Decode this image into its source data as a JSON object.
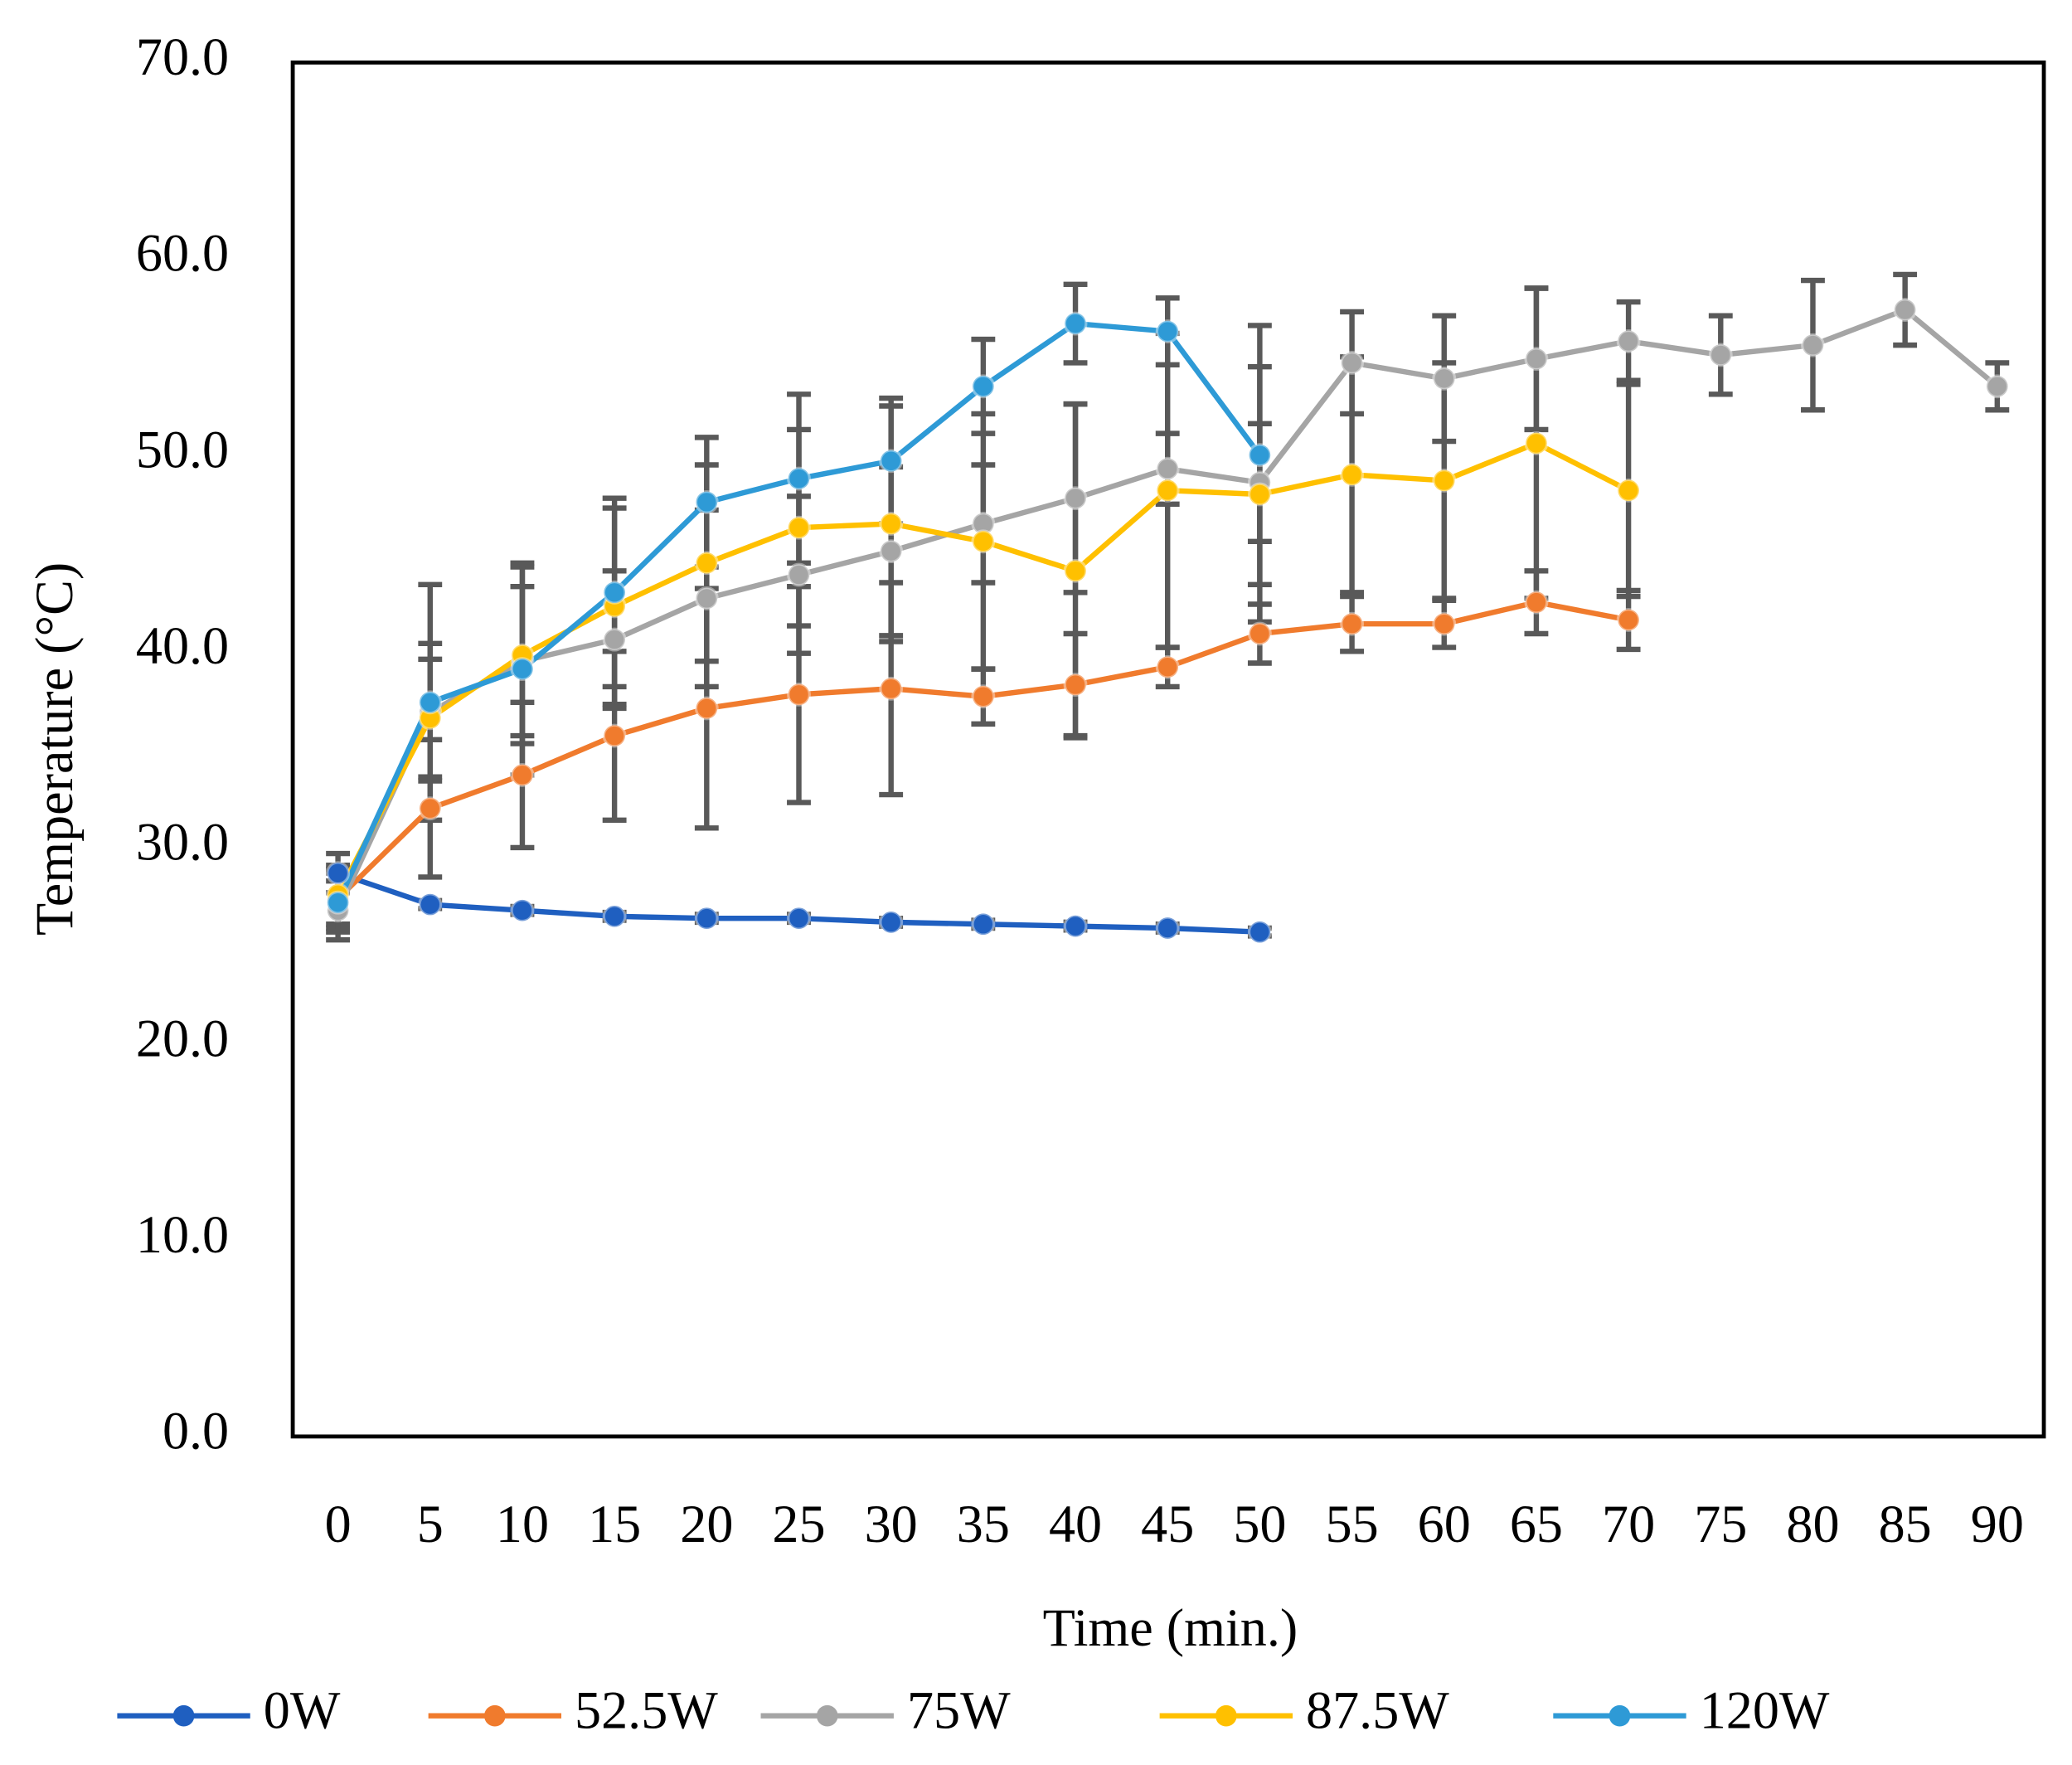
{
  "chart_data": {
    "type": "line",
    "x_label": "Time (min.)",
    "y_label": "Temperature (°C)",
    "categories": [
      0,
      5,
      10,
      15,
      20,
      25,
      30,
      35,
      40,
      45,
      50,
      55,
      60,
      65,
      70,
      75,
      80,
      85,
      90
    ],
    "ylim": [
      0,
      70
    ],
    "yticks": [
      {
        "value": 0,
        "label": "0.0"
      },
      {
        "value": 10,
        "label": "10.0"
      },
      {
        "value": 20,
        "label": "20.0"
      },
      {
        "value": 30,
        "label": "30.0"
      },
      {
        "value": 40,
        "label": "40.0"
      },
      {
        "value": 50,
        "label": "50.0"
      },
      {
        "value": 60,
        "label": "60.0"
      },
      {
        "value": 70,
        "label": "70.0"
      }
    ],
    "grid": false,
    "legend": "bottom",
    "error_color": "#595959",
    "series": [
      {
        "name": "0W",
        "color": "#1f5fc0",
        "values": [
          28.7,
          27.1,
          26.8,
          26.5,
          26.4,
          26.4,
          26.2,
          26.1,
          26.0,
          25.9,
          25.7,
          null,
          null,
          null,
          null,
          null,
          null,
          null,
          null
        ],
        "errors": [
          1.0,
          0.2,
          0.2,
          0.2,
          0.2,
          0.2,
          0.2,
          0.2,
          0.2,
          0.2,
          0.2,
          null,
          null,
          null,
          null,
          null,
          null,
          null,
          null
        ]
      },
      {
        "name": "52.5W",
        "color": "#f07b2d",
        "values": [
          27.4,
          32.0,
          33.7,
          35.7,
          37.1,
          37.8,
          38.1,
          37.7,
          38.3,
          39.2,
          40.9,
          41.4,
          41.4,
          42.5,
          41.6,
          null,
          null,
          null,
          null
        ],
        "errors": [
          1.5,
          3.5,
          3.7,
          4.3,
          6.1,
          5.5,
          5.4,
          1.4,
          2.6,
          1.0,
          1.5,
          1.4,
          1.2,
          1.6,
          1.5,
          null,
          null,
          null,
          null
        ]
      },
      {
        "name": "75W",
        "color": "#a5a5a5",
        "values": [
          26.8,
          36.9,
          39.5,
          40.6,
          42.7,
          43.9,
          45.1,
          46.5,
          47.8,
          49.3,
          48.6,
          54.7,
          53.9,
          54.9,
          55.8,
          55.1,
          55.6,
          57.4,
          53.5
        ],
        "errors": [
          1.5,
          3.5,
          3.8,
          3.5,
          4.5,
          4.0,
          4.3,
          3.0,
          4.8,
          1.8,
          3.0,
          2.6,
          3.2,
          3.6,
          2.0,
          2.0,
          3.3,
          1.8,
          1.2
        ]
      },
      {
        "name": "87.5W",
        "color": "#ffc000",
        "values": [
          27.6,
          36.6,
          39.8,
          42.3,
          44.5,
          46.3,
          46.5,
          45.6,
          44.1,
          48.2,
          48.0,
          49.0,
          48.7,
          50.6,
          48.2,
          null,
          null,
          null,
          null
        ],
        "errors": [
          1.5,
          3.0,
          4.5,
          5.0,
          5.0,
          5.0,
          6.0,
          6.5,
          8.5,
          8.0,
          6.5,
          6.0,
          6.0,
          7.9,
          5.4,
          null,
          null,
          null,
          null
        ]
      },
      {
        "name": "120W",
        "color": "#2e9ad6",
        "values": [
          27.2,
          37.4,
          39.1,
          43.0,
          47.6,
          48.8,
          49.7,
          53.5,
          56.7,
          56.3,
          50.0,
          null,
          null,
          null,
          null,
          null,
          null,
          null,
          null
        ],
        "errors": [
          1.5,
          6.0,
          5.4,
          4.8,
          3.3,
          4.3,
          3.2,
          2.4,
          2.0,
          1.7,
          6.6,
          null,
          null,
          null,
          null,
          null,
          null,
          null,
          null
        ]
      }
    ]
  }
}
